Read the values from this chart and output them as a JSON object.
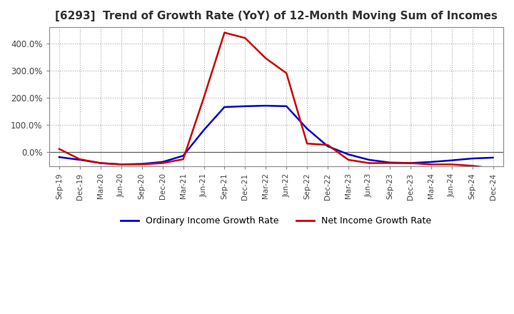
{
  "title": "[6293]  Trend of Growth Rate (YoY) of 12-Month Moving Sum of Incomes",
  "title_fontsize": 11,
  "ylim": [
    -55,
    460
  ],
  "yticks": [
    0,
    100,
    200,
    300,
    400
  ],
  "yticklabels": [
    "0.0%",
    "100.0%",
    "200.0%",
    "300.0%",
    "400.0%"
  ],
  "background_color": "#ffffff",
  "plot_bg_color": "#ffffff",
  "grid_color": "#aaaaaa",
  "ordinary_income_color": "#0000cc",
  "net_income_color": "#cc0000",
  "line_width": 1.8,
  "x_labels": [
    "Sep-19",
    "Dec-19",
    "Mar-20",
    "Jun-20",
    "Sep-20",
    "Dec-20",
    "Mar-21",
    "Jun-21",
    "Sep-21",
    "Dec-21",
    "Mar-22",
    "Jun-22",
    "Sep-22",
    "Dec-22",
    "Mar-23",
    "Jun-23",
    "Sep-23",
    "Dec-23",
    "Mar-24",
    "Jun-24",
    "Sep-24",
    "Dec-24"
  ],
  "ordinary_income": [
    -20,
    -30,
    -42,
    -47,
    -45,
    -38,
    -15,
    80,
    165,
    168,
    170,
    168,
    85,
    20,
    -10,
    -30,
    -40,
    -42,
    -38,
    -32,
    -25,
    -22
  ],
  "net_income": [
    10,
    -28,
    -42,
    -47,
    -47,
    -42,
    -28,
    200,
    440,
    420,
    345,
    290,
    30,
    25,
    -30,
    -42,
    -42,
    -42,
    -47,
    -47,
    -52,
    -62
  ],
  "legend_ordinary": "Ordinary Income Growth Rate",
  "legend_net": "Net Income Growth Rate"
}
